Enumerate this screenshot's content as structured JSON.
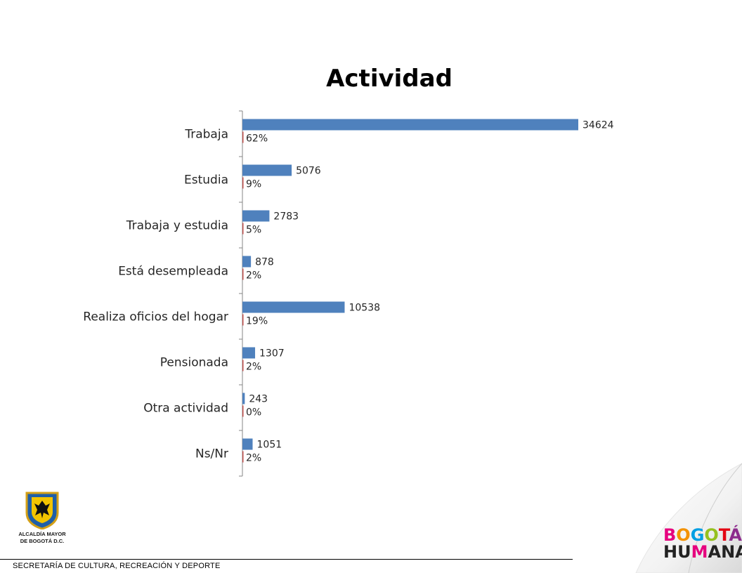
{
  "chart_data": {
    "type": "bar",
    "title": "Actividad",
    "categories": [
      "Trabaja",
      "Estudia",
      "Trabaja y estudia",
      "Está desempleada",
      "Realiza oficios del hogar",
      "Pensionada",
      "Otra actividad",
      "Ns/Nr"
    ],
    "series": [
      {
        "values": [
          34624,
          5076,
          2783,
          878,
          10538,
          1307,
          243,
          1051
        ],
        "labels": [
          "34624",
          "5076",
          "2783",
          "878",
          "10538",
          "1307",
          "243",
          "1051"
        ],
        "color": "#4f81bd"
      },
      {
        "values": [
          62,
          9,
          5,
          2,
          19,
          2,
          0,
          2
        ],
        "labels": [
          "62%",
          "9%",
          "5%",
          "2%",
          "19%",
          "2%",
          "0%",
          "2%"
        ],
        "color": "#c0504d"
      }
    ],
    "orientation": "horizontal",
    "grid": false,
    "legend": "none"
  },
  "footer": {
    "text": "SECRETARÍA DE CULTURA, RECREACIÓN Y DEPORTE"
  },
  "logos": {
    "alcaldia": "ALCALDÍA MAYOR\nDE BOGOTÁ D.C.",
    "bogota_line1": [
      "B",
      "O",
      "G",
      "O",
      "T",
      "Á"
    ],
    "bogota_line2": [
      "H",
      "U",
      "M",
      "A",
      "N",
      "A"
    ],
    "bogota_colors_line1": [
      "#e6007e",
      "#f39200",
      "#009fe3",
      "#95c11f",
      "#e30613",
      "#8c2a8c"
    ],
    "bogota_colors_line2": [
      "#222222",
      "#222222",
      "#e6007e",
      "#222222",
      "#222222",
      "#222222"
    ]
  }
}
